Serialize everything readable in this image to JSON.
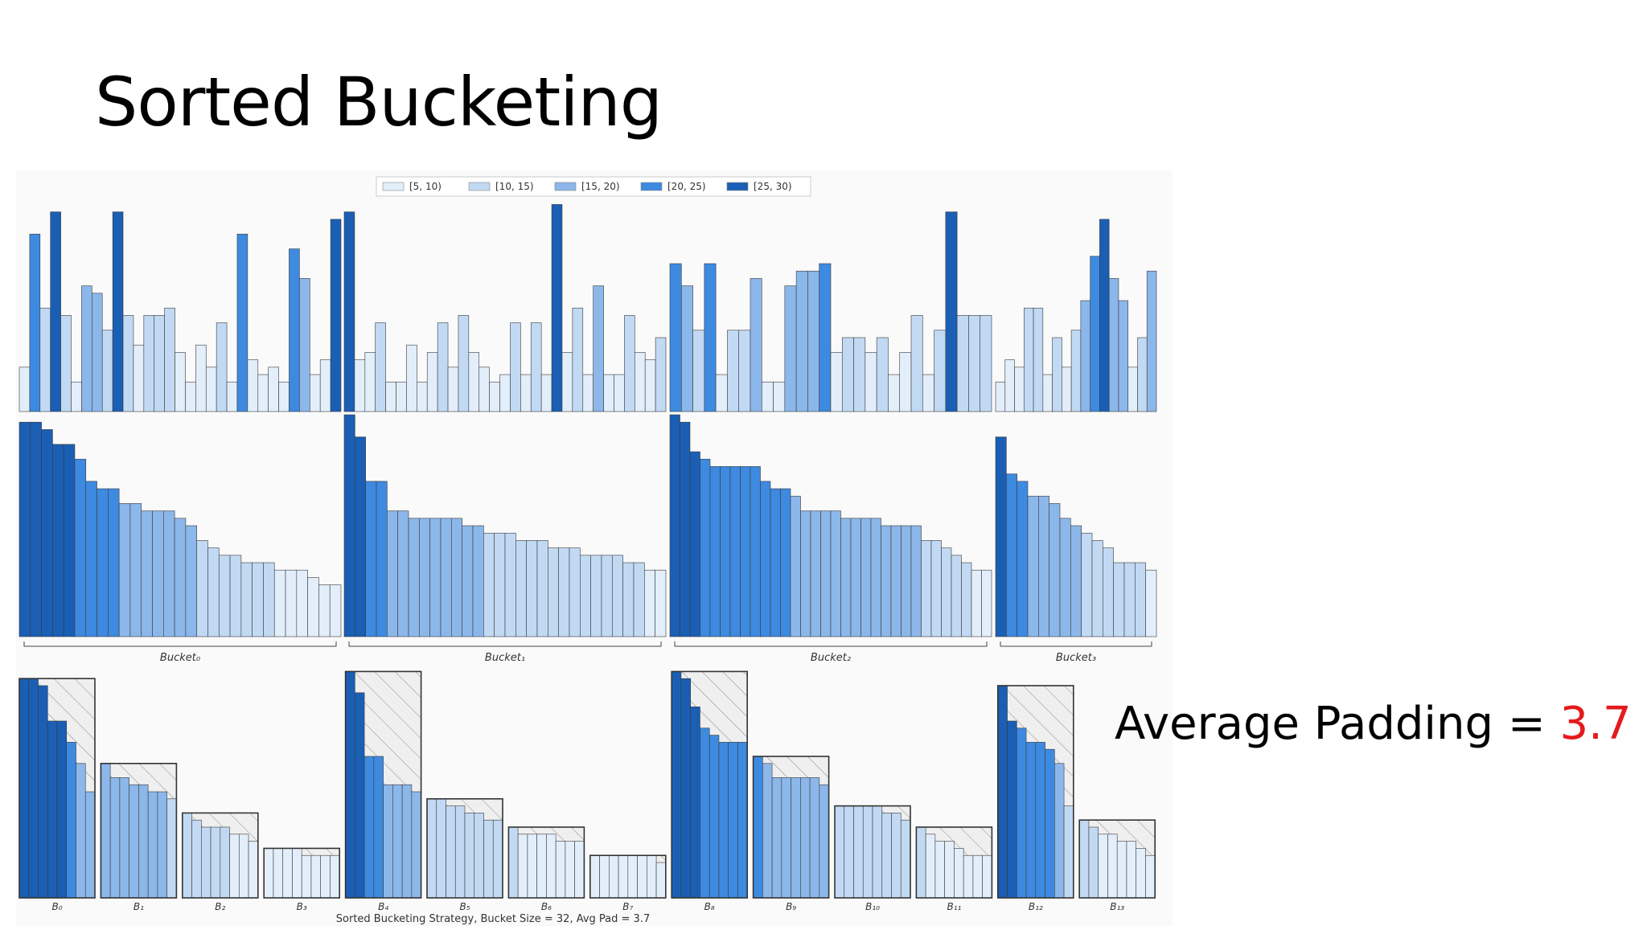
{
  "slide": {
    "title": "Sorted Bucketing",
    "padding_label": "Average Padding = ",
    "padding_value": "3.7"
  },
  "colors": {
    "bins": [
      "#e3eefb",
      "#c2d9f3",
      "#8cb7ea",
      "#3d8ae0",
      "#1a5fb4"
    ],
    "pad_fill": "#efefef",
    "bar_edge": "#3a3a3a",
    "value_accent": "#e41a1c"
  },
  "chart_data": [
    {
      "type": "bar",
      "name": "sequence lengths (unsorted)",
      "legend": {
        "position": "top-center",
        "entries": [
          "[5, 10)",
          "[10, 15)",
          "[15, 20)",
          "[20, 25)",
          "[25, 30)"
        ]
      },
      "groups": [
        [
          6,
          24,
          14,
          27,
          13,
          4,
          17,
          16,
          11,
          27,
          13,
          9,
          13,
          13,
          14,
          8,
          4,
          9,
          6,
          12,
          4,
          24,
          7,
          5,
          6,
          4,
          22,
          18,
          5,
          7,
          26
        ],
        [
          27,
          7,
          8,
          12,
          4,
          4,
          9,
          4,
          8,
          12,
          6,
          13,
          8,
          6,
          4,
          5,
          12,
          5,
          12,
          5,
          28,
          8,
          14,
          5,
          17,
          5,
          5,
          13,
          8,
          7,
          10
        ],
        [
          20,
          17,
          11,
          20,
          5,
          11,
          11,
          18,
          4,
          4,
          17,
          19,
          19,
          20,
          8,
          10,
          10,
          8,
          10,
          5,
          8,
          13,
          5,
          11,
          27,
          13,
          13,
          13
        ],
        [
          4,
          7,
          6,
          14,
          14,
          5,
          10,
          6,
          11,
          15,
          21,
          26,
          18,
          15,
          6,
          10,
          19
        ]
      ]
    },
    {
      "type": "bar",
      "name": "sorted sequence lengths",
      "groups": [
        [
          29,
          29,
          28,
          26,
          26,
          24,
          21,
          20,
          20,
          18,
          18,
          17,
          17,
          17,
          16,
          15,
          13,
          12,
          11,
          11,
          10,
          10,
          10,
          9,
          9,
          9,
          8,
          7,
          7
        ],
        [
          30,
          27,
          21,
          21,
          17,
          17,
          16,
          16,
          16,
          16,
          16,
          15,
          15,
          14,
          14,
          14,
          13,
          13,
          13,
          12,
          12,
          12,
          11,
          11,
          11,
          11,
          10,
          10,
          9,
          9
        ],
        [
          30,
          29,
          25,
          24,
          23,
          23,
          23,
          23,
          23,
          21,
          20,
          20,
          19,
          17,
          17,
          17,
          17,
          16,
          16,
          16,
          16,
          15,
          15,
          15,
          15,
          13,
          13,
          12,
          11,
          10,
          9,
          9
        ],
        [
          27,
          22,
          21,
          19,
          19,
          18,
          16,
          15,
          14,
          13,
          12,
          10,
          10,
          10,
          9
        ]
      ],
      "group_labels": [
        "Bucket₀",
        "Bucket₁",
        "Bucket₂",
        "Bucket₃"
      ]
    },
    {
      "type": "bar",
      "name": "padded batches",
      "batches": [
        {
          "label": "B₀",
          "values": [
            31,
            31,
            30,
            25,
            25,
            22,
            19,
            15
          ]
        },
        {
          "label": "B₁",
          "values": [
            19,
            17,
            17,
            16,
            16,
            15,
            15,
            14
          ]
        },
        {
          "label": "B₂",
          "values": [
            12,
            11,
            10,
            10,
            10,
            9,
            9,
            8
          ]
        },
        {
          "label": "B₃",
          "values": [
            7,
            7,
            7,
            7,
            6,
            6,
            6,
            6
          ]
        },
        {
          "label": "B₄",
          "values": [
            32,
            29,
            20,
            20,
            16,
            16,
            16,
            15
          ]
        },
        {
          "label": "B₅",
          "values": [
            14,
            14,
            13,
            13,
            12,
            12,
            11,
            11
          ]
        },
        {
          "label": "B₆",
          "values": [
            10,
            9,
            9,
            9,
            9,
            8,
            8,
            8
          ]
        },
        {
          "label": "B₇",
          "values": [
            6,
            6,
            6,
            6,
            6,
            6,
            6,
            5
          ]
        },
        {
          "label": "B₈",
          "values": [
            32,
            31,
            27,
            24,
            23,
            22,
            22,
            22
          ]
        },
        {
          "label": "B₉",
          "values": [
            20,
            19,
            17,
            17,
            17,
            17,
            17,
            16
          ]
        },
        {
          "label": "B₁₀",
          "values": [
            13,
            13,
            13,
            13,
            13,
            12,
            12,
            11
          ]
        },
        {
          "label": "B₁₁",
          "values": [
            10,
            9,
            8,
            8,
            7,
            6,
            6,
            6
          ]
        },
        {
          "label": "B₁₂",
          "values": [
            30,
            25,
            24,
            22,
            22,
            21,
            19,
            13
          ]
        },
        {
          "label": "B₁₃",
          "values": [
            11,
            10,
            9,
            9,
            8,
            8,
            7,
            6
          ]
        }
      ],
      "caption": "Sorted Bucketing Strategy, Bucket Size = 32, Avg Pad = 3.7"
    }
  ]
}
